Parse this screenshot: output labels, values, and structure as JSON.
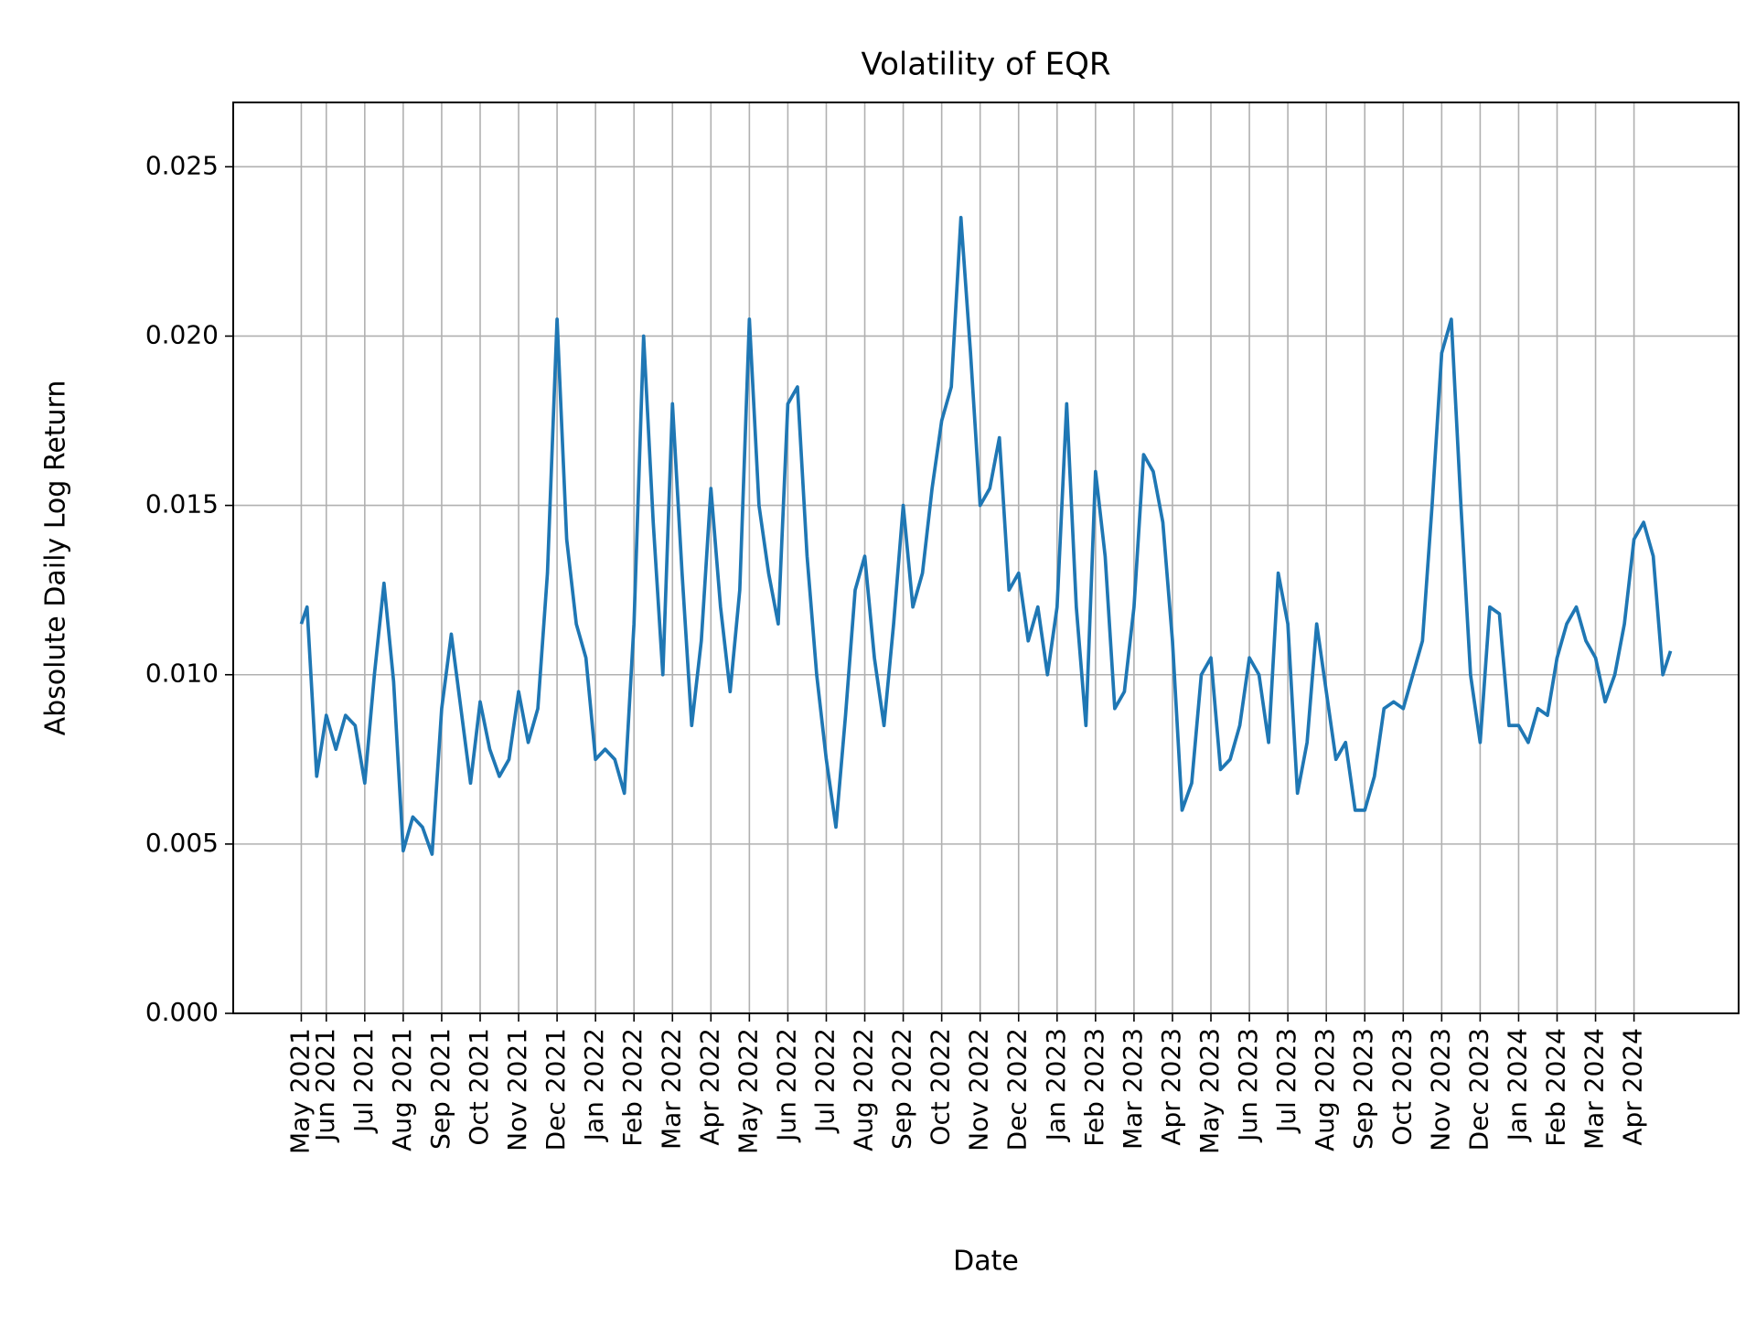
{
  "chart_data": {
    "type": "line",
    "title": "Volatility of EQR",
    "xlabel": "Date",
    "ylabel": "Absolute Daily Log Return",
    "grid": true,
    "xlim": [
      -1.42,
      37.72
    ],
    "ylim": [
      0,
      0.0269
    ],
    "xticks": [
      {
        "value": 0.35,
        "label": "May 2021"
      },
      {
        "value": 1,
        "label": "Jun 2021"
      },
      {
        "value": 2,
        "label": "Jul 2021"
      },
      {
        "value": 3,
        "label": "Aug 2021"
      },
      {
        "value": 4,
        "label": "Sep 2021"
      },
      {
        "value": 5,
        "label": "Oct 2021"
      },
      {
        "value": 6,
        "label": "Nov 2021"
      },
      {
        "value": 7,
        "label": "Dec 2021"
      },
      {
        "value": 8,
        "label": "Jan 2022"
      },
      {
        "value": 9,
        "label": "Feb 2022"
      },
      {
        "value": 10,
        "label": "Mar 2022"
      },
      {
        "value": 11,
        "label": "Apr 2022"
      },
      {
        "value": 12,
        "label": "May 2022"
      },
      {
        "value": 13,
        "label": "Jun 2022"
      },
      {
        "value": 14,
        "label": "Jul 2022"
      },
      {
        "value": 15,
        "label": "Aug 2022"
      },
      {
        "value": 16,
        "label": "Sep 2022"
      },
      {
        "value": 17,
        "label": "Oct 2022"
      },
      {
        "value": 18,
        "label": "Nov 2022"
      },
      {
        "value": 19,
        "label": "Dec 2022"
      },
      {
        "value": 20,
        "label": "Jan 2023"
      },
      {
        "value": 21,
        "label": "Feb 2023"
      },
      {
        "value": 22,
        "label": "Mar 2023"
      },
      {
        "value": 23,
        "label": "Apr 2023"
      },
      {
        "value": 24,
        "label": "May 2023"
      },
      {
        "value": 25,
        "label": "Jun 2023"
      },
      {
        "value": 26,
        "label": "Jul 2023"
      },
      {
        "value": 27,
        "label": "Aug 2023"
      },
      {
        "value": 28,
        "label": "Sep 2023"
      },
      {
        "value": 29,
        "label": "Oct 2023"
      },
      {
        "value": 30,
        "label": "Nov 2023"
      },
      {
        "value": 31,
        "label": "Dec 2023"
      },
      {
        "value": 32,
        "label": "Jan 2024"
      },
      {
        "value": 33,
        "label": "Feb 2024"
      },
      {
        "value": 34,
        "label": "Mar 2024"
      },
      {
        "value": 35,
        "label": "Apr 2024"
      }
    ],
    "yticks": [
      {
        "value": 0,
        "label": "0.000"
      },
      {
        "value": 0.005,
        "label": "0.005"
      },
      {
        "value": 0.01,
        "label": "0.010"
      },
      {
        "value": 0.015,
        "label": "0.015"
      },
      {
        "value": 0.02,
        "label": "0.020"
      },
      {
        "value": 0.025,
        "label": "0.025"
      }
    ],
    "x": [
      0.35,
      0.5,
      0.75,
      1,
      1.25,
      1.5,
      1.75,
      2,
      2.25,
      2.5,
      2.75,
      3,
      3.25,
      3.5,
      3.75,
      4,
      4.25,
      4.5,
      4.75,
      5,
      5.25,
      5.5,
      5.75,
      6,
      6.25,
      6.5,
      6.75,
      7,
      7.25,
      7.5,
      7.75,
      8,
      8.25,
      8.5,
      8.75,
      9,
      9.25,
      9.5,
      9.75,
      10,
      10.25,
      10.5,
      10.75,
      11,
      11.25,
      11.5,
      11.75,
      12,
      12.25,
      12.5,
      12.75,
      13,
      13.25,
      13.5,
      13.75,
      14,
      14.25,
      14.5,
      14.75,
      15,
      15.25,
      15.5,
      15.75,
      16,
      16.25,
      16.5,
      16.75,
      17,
      17.25,
      17.5,
      17.75,
      18,
      18.25,
      18.5,
      18.75,
      19,
      19.25,
      19.5,
      19.75,
      20,
      20.25,
      20.5,
      20.75,
      21,
      21.25,
      21.5,
      21.75,
      22,
      22.25,
      22.5,
      22.75,
      23,
      23.25,
      23.5,
      23.75,
      24,
      24.25,
      24.5,
      24.75,
      25,
      25.25,
      25.5,
      25.75,
      26,
      26.25,
      26.5,
      26.75,
      27,
      27.25,
      27.5,
      27.75,
      28,
      28.25,
      28.5,
      28.75,
      29,
      29.25,
      29.5,
      29.75,
      30,
      30.25,
      30.5,
      30.75,
      31,
      31.25,
      31.5,
      31.75,
      32,
      32.25,
      32.5,
      32.75,
      33,
      33.25,
      33.5,
      33.75,
      34,
      34.25,
      34.5,
      34.75,
      35,
      35.25,
      35.5,
      35.75,
      35.95
    ],
    "series": [
      {
        "color": "#1f77b4",
        "values": [
          0.0115,
          0.012,
          0.007,
          0.0088,
          0.0078,
          0.0088,
          0.0085,
          0.0068,
          0.01,
          0.0127,
          0.0098,
          0.0048,
          0.0058,
          0.0055,
          0.0047,
          0.009,
          0.0112,
          0.009,
          0.0068,
          0.0092,
          0.0078,
          0.007,
          0.0075,
          0.0095,
          0.008,
          0.009,
          0.013,
          0.0205,
          0.014,
          0.0115,
          0.0105,
          0.0075,
          0.0078,
          0.0075,
          0.0065,
          0.0115,
          0.02,
          0.0145,
          0.01,
          0.018,
          0.013,
          0.0085,
          0.011,
          0.0155,
          0.012,
          0.0095,
          0.0125,
          0.0205,
          0.015,
          0.013,
          0.0115,
          0.018,
          0.0185,
          0.0135,
          0.01,
          0.0075,
          0.0055,
          0.0088,
          0.0125,
          0.0135,
          0.0105,
          0.0085,
          0.0115,
          0.015,
          0.012,
          0.013,
          0.0155,
          0.0175,
          0.0185,
          0.0235,
          0.0195,
          0.015,
          0.0155,
          0.017,
          0.0125,
          0.013,
          0.011,
          0.012,
          0.01,
          0.012,
          0.018,
          0.012,
          0.0085,
          0.016,
          0.0135,
          0.009,
          0.0095,
          0.012,
          0.0165,
          0.016,
          0.0145,
          0.011,
          0.006,
          0.0068,
          0.01,
          0.0105,
          0.0072,
          0.0075,
          0.0085,
          0.0105,
          0.01,
          0.008,
          0.013,
          0.0115,
          0.0065,
          0.008,
          0.0115,
          0.0095,
          0.0075,
          0.008,
          0.006,
          0.006,
          0.007,
          0.009,
          0.0092,
          0.009,
          0.01,
          0.011,
          0.015,
          0.0195,
          0.0205,
          0.015,
          0.01,
          0.008,
          0.012,
          0.0118,
          0.0085,
          0.0085,
          0.008,
          0.009,
          0.0088,
          0.0105,
          0.0115,
          0.012,
          0.011,
          0.0105,
          0.0092,
          0.01,
          0.0115,
          0.014,
          0.0145,
          0.0135,
          0.01,
          0.0107
        ]
      }
    ]
  }
}
